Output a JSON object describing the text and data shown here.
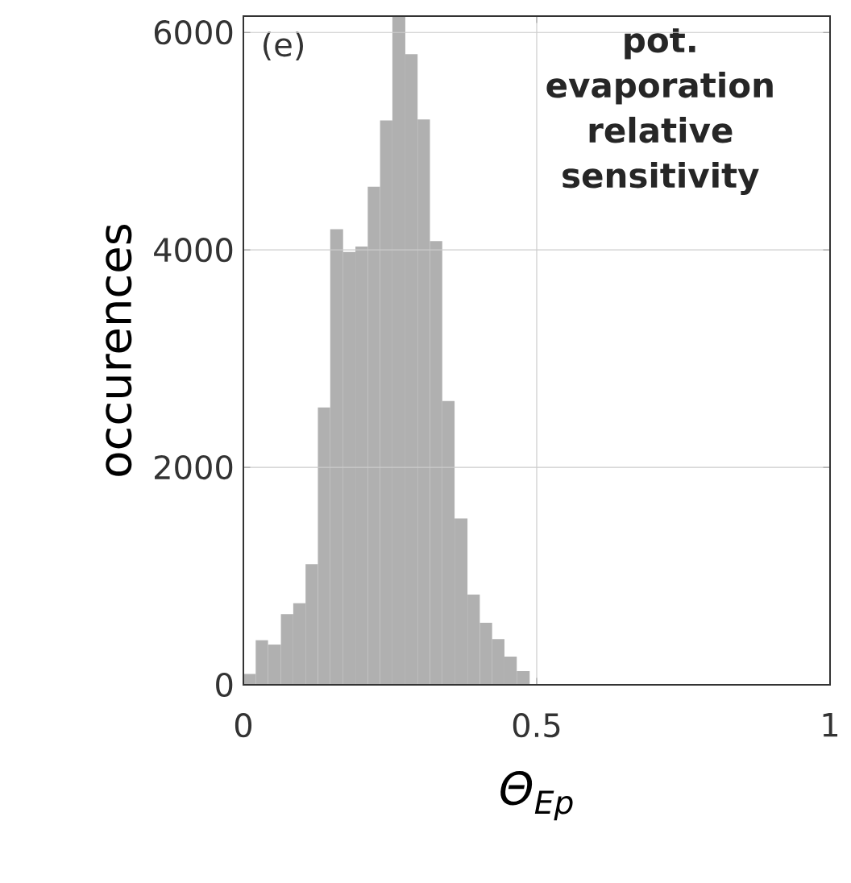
{
  "chart_data": {
    "type": "histogram",
    "ylabel": "occurences",
    "xlabel": "Θ$_{Ep}$",
    "annotations": [
      "(e)",
      "pot. evaporation relative sensitivity"
    ],
    "bins": [
      0,
      0.021,
      0.042,
      0.064,
      0.085,
      0.106,
      0.127,
      0.148,
      0.17,
      0.191,
      0.212,
      0.233,
      0.254,
      0.276,
      0.297,
      0.318,
      0.339,
      0.36,
      0.382,
      0.403,
      0.424,
      0.445,
      0.466,
      0.488
    ],
    "values": [
      100,
      410,
      370,
      650,
      750,
      1110,
      2550,
      4190,
      3980,
      4030,
      4580,
      5190,
      6150,
      5800,
      5200,
      4080,
      2610,
      1530,
      830,
      570,
      420,
      260,
      125
    ],
    "color": "#b0b0b0",
    "xlim": [
      0,
      1
    ],
    "xticks": [
      0,
      0.5,
      1
    ],
    "ylim": [
      0,
      6150
    ],
    "yticks": [
      0,
      2000,
      4000,
      6000
    ],
    "grid": true
  }
}
